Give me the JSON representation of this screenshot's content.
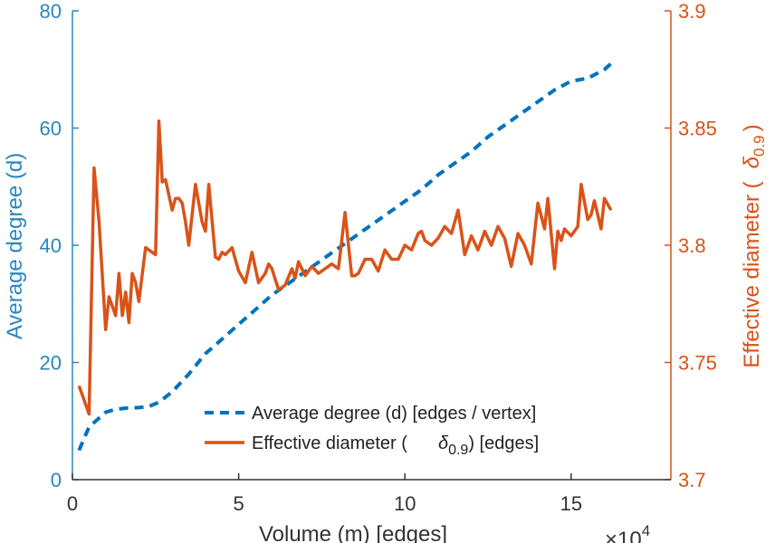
{
  "chart_data": {
    "type": "line",
    "xlabel": "Volume (m) [edges]",
    "x_multiplier": "×10",
    "x_multiplier_exponent": "4",
    "xlim": [
      0,
      18
    ],
    "xticks": [
      0,
      5,
      10,
      15
    ],
    "xtick_labels": [
      "0",
      "5",
      "10",
      "15"
    ],
    "y_left": {
      "label": "Average degree (d)",
      "lim": [
        0,
        80
      ],
      "ticks": [
        0,
        20,
        40,
        60,
        80
      ],
      "tick_labels": [
        "0",
        "20",
        "40",
        "60",
        "80"
      ],
      "color": "#0072bd"
    },
    "y_right": {
      "label_main": "Effective diameter (",
      "label_symbol": "δ",
      "label_sub": "0.9",
      "label_close": ")",
      "lim": [
        3.7,
        3.9
      ],
      "ticks": [
        3.7,
        3.75,
        3.8,
        3.85,
        3.9
      ],
      "tick_labels": [
        "3.7",
        "3.75",
        "3.8",
        "3.85",
        "3.9"
      ],
      "color": "#d95319"
    },
    "legend_placement": "bottom-right",
    "grid": false,
    "series": [
      {
        "name": "Average degree (d) [edges / vertex]",
        "axis": "left",
        "style": "dashed",
        "color": "#0072bd",
        "x": [
          0.2,
          0.5,
          0.8,
          1.0,
          1.3,
          1.6,
          2.0,
          2.3,
          2.6,
          3.0,
          3.5,
          4.0,
          4.5,
          5.0,
          5.5,
          6.0,
          6.5,
          7.0,
          7.5,
          8.0,
          8.5,
          9.0,
          9.5,
          10.0,
          10.5,
          11.0,
          11.5,
          12.0,
          12.5,
          13.0,
          13.5,
          14.0,
          14.5,
          15.0,
          15.5,
          16.0,
          16.3
        ],
        "y": [
          5,
          9,
          10.5,
          11.5,
          12,
          12.2,
          12.3,
          12.5,
          13.2,
          15,
          18,
          21.5,
          24,
          26.5,
          29,
          31.5,
          33.5,
          35.5,
          37.5,
          39.5,
          41.5,
          43.5,
          45.5,
          47.5,
          49.5,
          52,
          54,
          56,
          58.5,
          60.5,
          62.5,
          64.5,
          66.5,
          68,
          68.5,
          70,
          71.5
        ]
      },
      {
        "name": "Effective diameter (δ0.9) [edges]",
        "legend_main": "Effective diameter (",
        "legend_symbol": "δ",
        "legend_sub": "0.9",
        "legend_close": ") [edges]",
        "axis": "right",
        "style": "solid",
        "color": "#d95319",
        "x": [
          0.2,
          0.5,
          0.65,
          0.8,
          1.0,
          1.1,
          1.3,
          1.4,
          1.5,
          1.6,
          1.7,
          1.8,
          1.9,
          2.0,
          2.2,
          2.3,
          2.5,
          2.6,
          2.7,
          2.8,
          3.0,
          3.1,
          3.2,
          3.3,
          3.4,
          3.5,
          3.7,
          3.9,
          4.0,
          4.1,
          4.3,
          4.4,
          4.5,
          4.6,
          4.8,
          5.0,
          5.2,
          5.4,
          5.6,
          5.8,
          5.9,
          6.0,
          6.2,
          6.4,
          6.6,
          6.7,
          6.8,
          7.0,
          7.2,
          7.4,
          7.6,
          7.8,
          8.0,
          8.2,
          8.4,
          8.5,
          8.6,
          8.8,
          9.0,
          9.2,
          9.4,
          9.6,
          9.8,
          10.0,
          10.2,
          10.4,
          10.5,
          10.6,
          10.8,
          11.0,
          11.2,
          11.4,
          11.6,
          11.8,
          12.0,
          12.2,
          12.4,
          12.6,
          12.8,
          13.0,
          13.2,
          13.4,
          13.6,
          13.8,
          14.0,
          14.2,
          14.3,
          14.5,
          14.6,
          14.7,
          14.8,
          15.0,
          15.2,
          15.3,
          15.5,
          15.6,
          15.7,
          15.9,
          16.0,
          16.2
        ],
        "y": [
          3.74,
          3.728,
          3.833,
          3.81,
          3.764,
          3.778,
          3.77,
          3.788,
          3.77,
          3.78,
          3.767,
          3.788,
          3.784,
          3.776,
          3.799,
          3.798,
          3.796,
          3.853,
          3.827,
          3.828,
          3.815,
          3.82,
          3.82,
          3.818,
          3.81,
          3.8,
          3.826,
          3.81,
          3.806,
          3.826,
          3.795,
          3.794,
          3.797,
          3.796,
          3.799,
          3.789,
          3.784,
          3.797,
          3.784,
          3.788,
          3.792,
          3.79,
          3.781,
          3.783,
          3.79,
          3.786,
          3.793,
          3.787,
          3.791,
          3.788,
          3.79,
          3.792,
          3.79,
          3.814,
          3.787,
          3.787,
          3.788,
          3.794,
          3.794,
          3.789,
          3.798,
          3.794,
          3.794,
          3.8,
          3.798,
          3.805,
          3.806,
          3.802,
          3.8,
          3.803,
          3.808,
          3.805,
          3.815,
          3.796,
          3.804,
          3.798,
          3.806,
          3.8,
          3.808,
          3.803,
          3.791,
          3.805,
          3.8,
          3.792,
          3.818,
          3.807,
          3.82,
          3.79,
          3.806,
          3.802,
          3.807,
          3.804,
          3.808,
          3.826,
          3.811,
          3.813,
          3.819,
          3.807,
          3.82,
          3.815
        ]
      }
    ]
  }
}
